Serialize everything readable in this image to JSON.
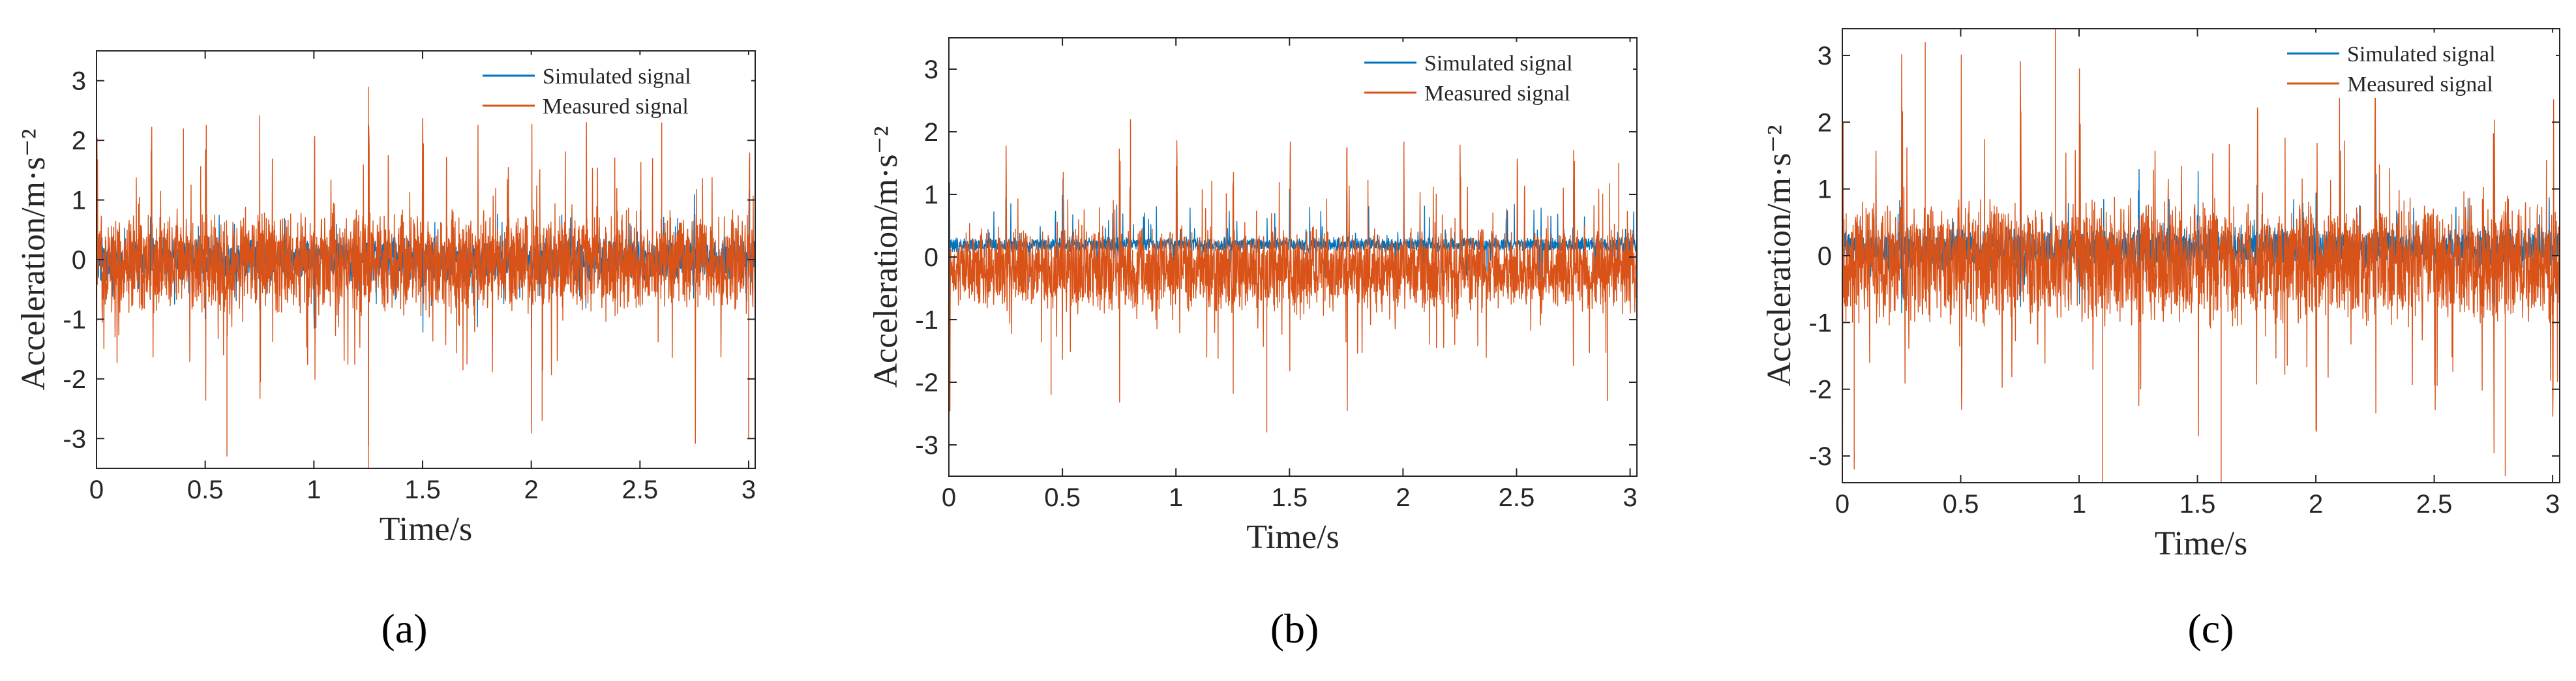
{
  "chart_data": [
    {
      "type": "line",
      "panel": "a",
      "caption": "(a)",
      "xlabel": "Time/s",
      "ylabel": "Acceleration/m·s⁻²",
      "xlim": [
        0,
        3.03
      ],
      "ylim": [
        -3.5,
        3.5
      ],
      "xticks": [
        "0",
        "0.5",
        "1",
        "1.5",
        "2",
        "2.5",
        "3"
      ],
      "yticks": [
        "-3",
        "-2",
        "-1",
        "0",
        "1",
        "2",
        "3"
      ],
      "grid": false,
      "legend_position": "top-right",
      "series": [
        {
          "name": "Simulated signal",
          "color": "#0072BD",
          "approx_range": [
            -1.4,
            1.3
          ],
          "baseline": 0.0
        },
        {
          "name": "Measured signal",
          "color": "#D95319",
          "approx_range": [
            -3.5,
            2.9
          ],
          "baseline": -0.05,
          "peaks": [
            [
              1.25,
              2.9
            ],
            [
              0.4,
              2.2
            ],
            [
              0.6,
              -3.3
            ],
            [
              1.25,
              -3.5
            ],
            [
              2.05,
              -2.7
            ],
            [
              2.6,
              2.3
            ],
            [
              3.0,
              -3.0
            ]
          ]
        }
      ]
    },
    {
      "type": "line",
      "panel": "b",
      "caption": "(b)",
      "xlabel": "Time/s",
      "ylabel": "Acceleration/m·s⁻²",
      "xlim": [
        0,
        3.03
      ],
      "ylim": [
        -3.5,
        3.5
      ],
      "xticks": [
        "0",
        "0.5",
        "1",
        "1.5",
        "2",
        "2.5",
        "3"
      ],
      "yticks": [
        "-3",
        "-2",
        "-1",
        "0",
        "1",
        "2",
        "3"
      ],
      "grid": false,
      "legend_position": "top-right",
      "series": [
        {
          "name": "Simulated signal",
          "color": "#0072BD",
          "approx_range": [
            -0.2,
            1.4
          ],
          "baseline": 0.2
        },
        {
          "name": "Measured signal",
          "color": "#D95319",
          "approx_range": [
            -2.8,
            2.2
          ],
          "baseline": -0.2,
          "peaks": [
            [
              0.8,
              2.2
            ],
            [
              1.4,
              -2.8
            ],
            [
              0.45,
              -2.2
            ],
            [
              2.95,
              1.5
            ],
            [
              2.9,
              -2.3
            ]
          ]
        }
      ]
    },
    {
      "type": "line",
      "panel": "c",
      "caption": "(c)",
      "xlabel": "Time/s",
      "ylabel": "Acceleration/m·s⁻²",
      "xlim": [
        0,
        3.03
      ],
      "ylim": [
        -3.4,
        3.4
      ],
      "xticks": [
        "0",
        "0.5",
        "1",
        "1.5",
        "2",
        "2.5",
        "3"
      ],
      "yticks": [
        "-3",
        "-2",
        "-1",
        "0",
        "1",
        "2",
        "3"
      ],
      "grid": false,
      "legend_position": "top-right",
      "series": [
        {
          "name": "Simulated signal",
          "color": "#0072BD",
          "approx_range": [
            -1.0,
            1.5
          ],
          "baseline": 0.1
        },
        {
          "name": "Measured signal",
          "color": "#D95319",
          "approx_range": [
            -3.4,
            3.4
          ],
          "baseline": -0.1,
          "peaks": [
            [
              0.9,
              3.4
            ],
            [
              0.35,
              3.2
            ],
            [
              1.1,
              -3.4
            ],
            [
              1.6,
              -3.4
            ],
            [
              2.8,
              -3.3
            ],
            [
              0.05,
              -3.2
            ],
            [
              2.1,
              3.1
            ]
          ]
        }
      ]
    }
  ]
}
